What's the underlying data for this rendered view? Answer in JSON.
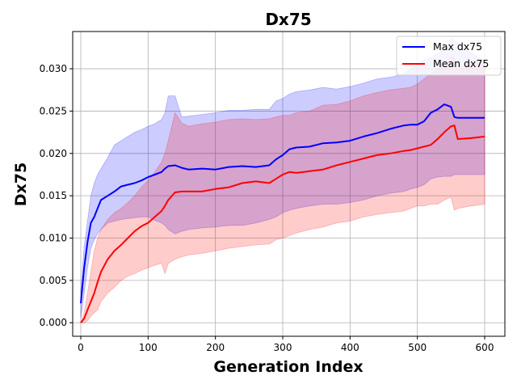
{
  "chart_data": {
    "type": "line",
    "title": "Dx75",
    "xlabel": "Generation Index",
    "ylabel": "Dx75",
    "xlim": [
      -12,
      630
    ],
    "ylim": [
      -0.0016,
      0.0344
    ],
    "x_ticks": [
      0,
      100,
      200,
      300,
      400,
      500,
      600
    ],
    "x_tick_labels": [
      "0",
      "100",
      "200",
      "300",
      "400",
      "500",
      "600"
    ],
    "y_ticks": [
      0.0,
      0.005,
      0.01,
      0.015,
      0.02,
      0.025,
      0.03
    ],
    "y_tick_labels": [
      "0.000",
      "0.005",
      "0.010",
      "0.015",
      "0.020",
      "0.025",
      "0.030"
    ],
    "grid": true,
    "legend_position": "top-right",
    "x": [
      0,
      5,
      10,
      15,
      20,
      25,
      30,
      40,
      50,
      60,
      70,
      80,
      90,
      100,
      110,
      120,
      125,
      130,
      140,
      150,
      160,
      180,
      200,
      220,
      240,
      260,
      280,
      290,
      300,
      310,
      320,
      340,
      360,
      380,
      400,
      420,
      440,
      460,
      480,
      490,
      500,
      510,
      520,
      530,
      540,
      550,
      555,
      560,
      580,
      600
    ],
    "series": [
      {
        "name": "Max dx75",
        "color": "#0000ff",
        "fill_color": "#0000ff",
        "values": [
          0.0023,
          0.0065,
          0.0095,
          0.0118,
          0.0125,
          0.0135,
          0.0145,
          0.015,
          0.0155,
          0.0161,
          0.0163,
          0.0165,
          0.0168,
          0.0172,
          0.0175,
          0.0178,
          0.0182,
          0.0185,
          0.0186,
          0.0183,
          0.0181,
          0.0182,
          0.0181,
          0.0184,
          0.0185,
          0.0184,
          0.0186,
          0.0193,
          0.0198,
          0.0205,
          0.0207,
          0.0208,
          0.0212,
          0.0213,
          0.0215,
          0.022,
          0.0224,
          0.0229,
          0.0233,
          0.0234,
          0.0234,
          0.0238,
          0.0248,
          0.0252,
          0.0258,
          0.0255,
          0.0243,
          0.0242,
          0.0242,
          0.0242
        ],
        "lower": [
          0.0005,
          0.0035,
          0.0065,
          0.0088,
          0.0098,
          0.0105,
          0.011,
          0.0118,
          0.012,
          0.0122,
          0.0123,
          0.0124,
          0.0125,
          0.0125,
          0.0121,
          0.0118,
          0.0115,
          0.011,
          0.0105,
          0.0108,
          0.011,
          0.0112,
          0.0113,
          0.0115,
          0.0115,
          0.0118,
          0.0122,
          0.0125,
          0.013,
          0.0133,
          0.0135,
          0.0138,
          0.014,
          0.014,
          0.0142,
          0.0145,
          0.015,
          0.0153,
          0.0155,
          0.0158,
          0.016,
          0.0163,
          0.017,
          0.0172,
          0.0173,
          0.0173,
          0.0175,
          0.0175,
          0.0175,
          0.0175
        ],
        "upper": [
          0.0038,
          0.009,
          0.012,
          0.015,
          0.0165,
          0.0175,
          0.0182,
          0.0195,
          0.021,
          0.0215,
          0.022,
          0.0225,
          0.0228,
          0.0232,
          0.0235,
          0.024,
          0.0248,
          0.0268,
          0.0268,
          0.0243,
          0.0244,
          0.0246,
          0.0248,
          0.0251,
          0.0251,
          0.0252,
          0.0252,
          0.0262,
          0.0265,
          0.027,
          0.0273,
          0.0275,
          0.0278,
          0.0276,
          0.0279,
          0.0283,
          0.0288,
          0.029,
          0.0294,
          0.03,
          0.0305,
          0.031,
          0.0313,
          0.0318,
          0.0322,
          0.0335,
          0.0333,
          0.033,
          0.0318,
          0.031
        ]
      },
      {
        "name": "Mean dx75",
        "color": "#ff0000",
        "fill_color": "#ff0000",
        "values": [
          0.0,
          0.0005,
          0.0015,
          0.0025,
          0.0035,
          0.0048,
          0.006,
          0.0075,
          0.0085,
          0.0092,
          0.01,
          0.0108,
          0.0114,
          0.0118,
          0.0125,
          0.0132,
          0.0138,
          0.0145,
          0.0154,
          0.0155,
          0.0155,
          0.0155,
          0.0158,
          0.016,
          0.0165,
          0.0167,
          0.0165,
          0.017,
          0.0175,
          0.0178,
          0.0177,
          0.0179,
          0.0181,
          0.0186,
          0.019,
          0.0194,
          0.0198,
          0.02,
          0.0203,
          0.0204,
          0.0206,
          0.0208,
          0.021,
          0.0217,
          0.0225,
          0.0232,
          0.0233,
          0.0217,
          0.0218,
          0.022
        ],
        "lower": [
          0.0,
          0.0,
          0.0002,
          0.0008,
          0.0012,
          0.0015,
          0.0025,
          0.0035,
          0.0042,
          0.005,
          0.0055,
          0.0058,
          0.0062,
          0.0065,
          0.0068,
          0.007,
          0.0058,
          0.007,
          0.0075,
          0.0078,
          0.008,
          0.0082,
          0.0085,
          0.0088,
          0.009,
          0.0092,
          0.0093,
          0.0098,
          0.01,
          0.0103,
          0.0106,
          0.011,
          0.0113,
          0.0118,
          0.012,
          0.0125,
          0.0128,
          0.013,
          0.0132,
          0.0135,
          0.0138,
          0.0138,
          0.014,
          0.014,
          0.0145,
          0.0148,
          0.0133,
          0.0135,
          0.0138,
          0.014
        ],
        "upper": [
          0.0,
          0.0012,
          0.0035,
          0.006,
          0.0085,
          0.01,
          0.011,
          0.0122,
          0.013,
          0.0135,
          0.0142,
          0.015,
          0.016,
          0.0168,
          0.0178,
          0.019,
          0.02,
          0.0215,
          0.0248,
          0.0236,
          0.0232,
          0.0235,
          0.0237,
          0.024,
          0.0241,
          0.024,
          0.0241,
          0.0243,
          0.0245,
          0.0245,
          0.0248,
          0.025,
          0.0257,
          0.0258,
          0.0262,
          0.0268,
          0.0272,
          0.0275,
          0.0277,
          0.0278,
          0.0282,
          0.0288,
          0.0294,
          0.03,
          0.0305,
          0.0315,
          0.0312,
          0.03,
          0.0305,
          0.031
        ]
      }
    ]
  }
}
